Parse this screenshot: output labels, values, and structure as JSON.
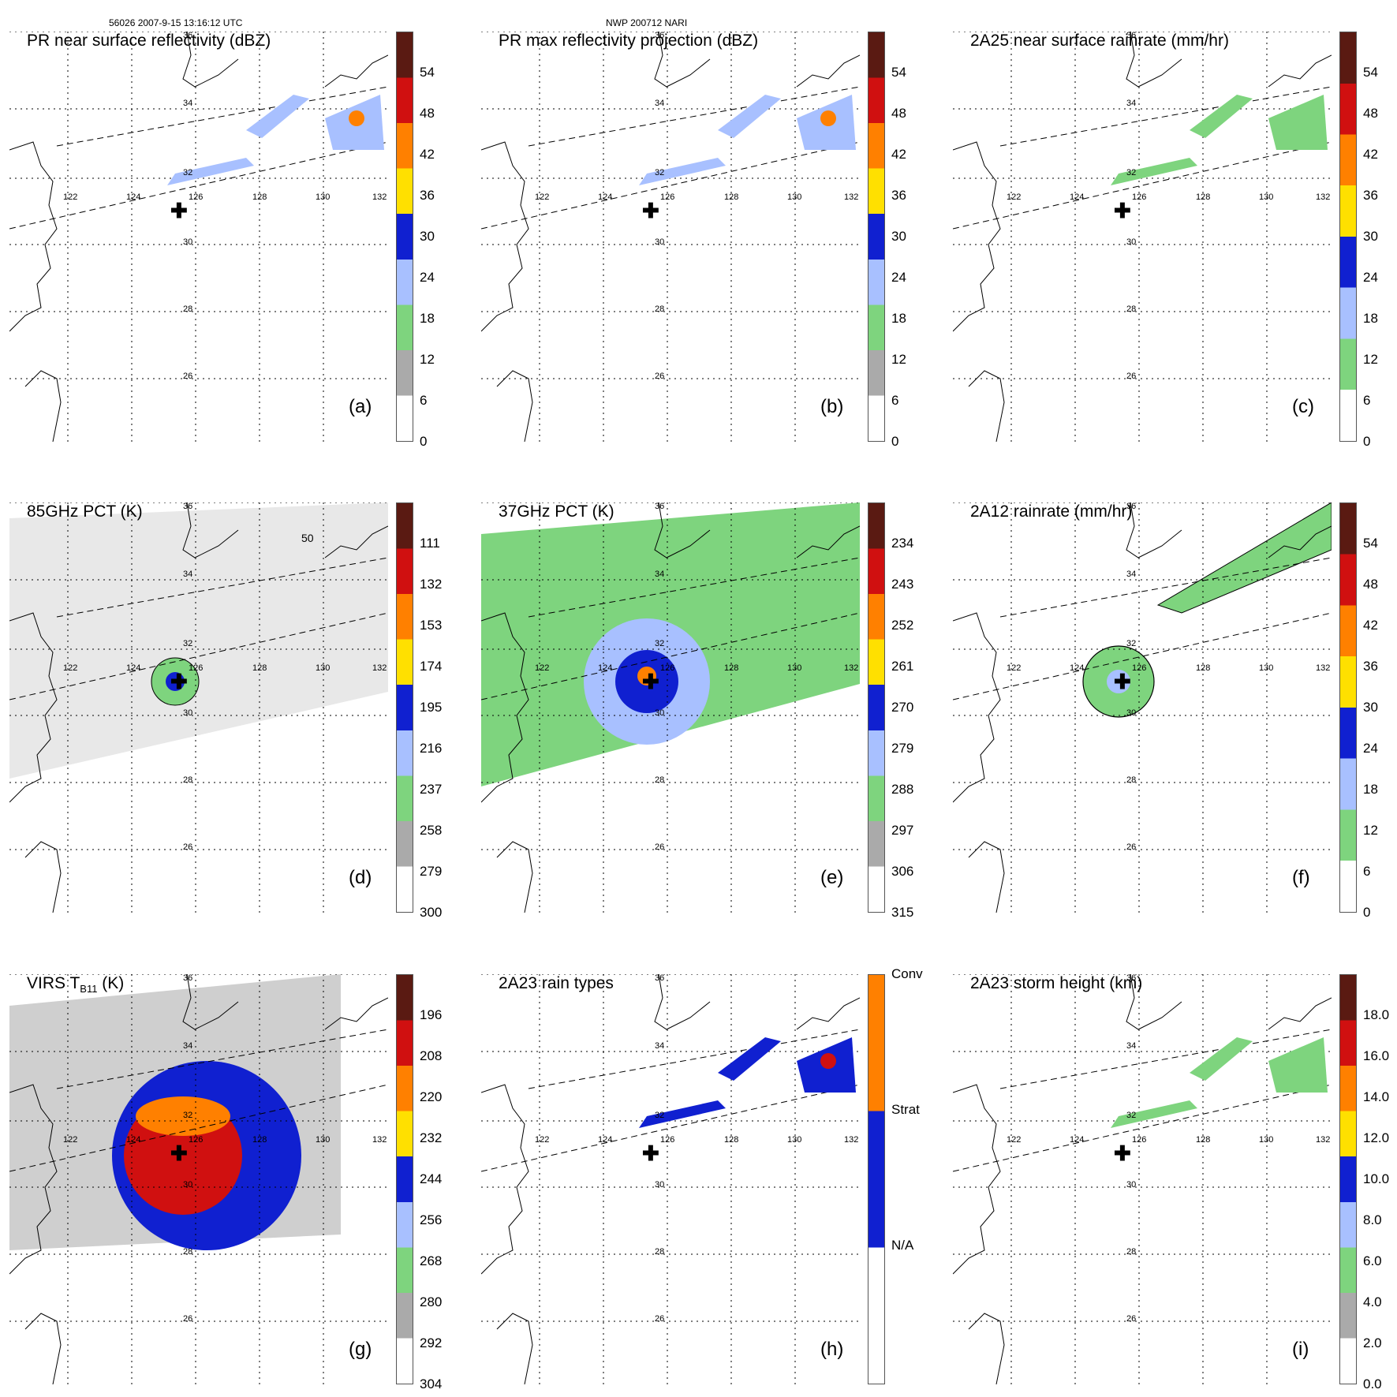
{
  "header": {
    "left": "56026 2007-9-15 13:16:12 UTC",
    "center": "NWP 200712 NARI"
  },
  "map_labels": {
    "lon": [
      "122",
      "124",
      "126",
      "128",
      "130",
      "132"
    ],
    "lat": [
      "36",
      "34",
      "32",
      "30",
      "28",
      "26"
    ]
  },
  "panels": [
    {
      "title": "PR near surface reflectivity (dBZ)",
      "label": "(a)",
      "ticks": [
        "54",
        "48",
        "42",
        "36",
        "30",
        "24",
        "18",
        "12",
        "6",
        "0"
      ]
    },
    {
      "title": "PR max reflectivity projection (dBZ)",
      "label": "(b)",
      "ticks": [
        "54",
        "48",
        "42",
        "36",
        "30",
        "24",
        "18",
        "12",
        "6",
        "0"
      ]
    },
    {
      "title": "2A25 near surface rainrate (mm/hr)",
      "label": "(c)",
      "ticks": [
        "54",
        "48",
        "42",
        "36",
        "30",
        "24",
        "18",
        "12",
        "6",
        "0"
      ]
    },
    {
      "title": "85GHz PCT (K)",
      "label": "(d)",
      "extra": "50",
      "ticks": [
        "111",
        "132",
        "153",
        "174",
        "195",
        "216",
        "237",
        "258",
        "279",
        "300"
      ]
    },
    {
      "title": "37GHz PCT (K)",
      "label": "(e)",
      "ticks": [
        "234",
        "243",
        "252",
        "261",
        "270",
        "279",
        "288",
        "297",
        "306",
        "315"
      ]
    },
    {
      "title": "2A12 rainrate (mm/hr)",
      "label": "(f)",
      "ticks": [
        "54",
        "48",
        "42",
        "36",
        "30",
        "24",
        "18",
        "12",
        "6",
        "0"
      ]
    },
    {
      "title": "VIRS T",
      "title_sub": "B11",
      "title_tail": " (K)",
      "label": "(g)",
      "ticks": [
        "196",
        "208",
        "220",
        "232",
        "244",
        "256",
        "268",
        "280",
        "292",
        "304"
      ]
    },
    {
      "title": "2A23 rain types",
      "label": "(h)",
      "ticks": [
        "Conv",
        "Strat",
        "N/A"
      ]
    },
    {
      "title": "2A23 storm height (km)",
      "label": "(i)",
      "ticks": [
        "18.0",
        "16.0",
        "14.0",
        "12.0",
        "10.0",
        "8.0",
        "6.0",
        "4.0",
        "2.0",
        "0.0"
      ]
    }
  ],
  "colors": {
    "dark_red": "#5a1a12",
    "red": "#d01010",
    "orange": "#ff8000",
    "yellow": "#ffe000",
    "blue": "#1020d0",
    "light_blue": "#a8c0ff",
    "green": "#7ed47e",
    "gray": "#aaaaaa",
    "white": "#ffffff"
  }
}
